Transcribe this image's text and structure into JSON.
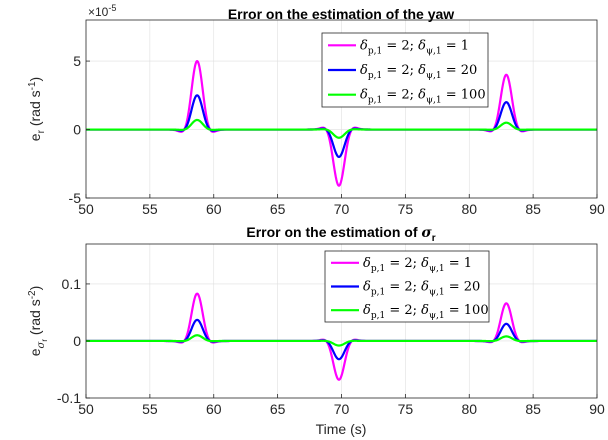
{
  "chart_data": [
    {
      "type": "line",
      "title": "Error on the estimation of the yaw",
      "ylabel_base": "e",
      "ylabel_sub": "r",
      "ylabel_units": "(rad s",
      "ylabel_units_sup": "-1",
      "ylabel_units_end": ")",
      "y_exponent_base": "×10",
      "y_exponent_power": "-5",
      "xlim": [
        50,
        90
      ],
      "ylim": [
        -5,
        8
      ],
      "xticks": [
        "50",
        "55",
        "60",
        "65",
        "70",
        "75",
        "80",
        "85",
        "90"
      ],
      "yticks": [
        "-5",
        "0",
        "5"
      ],
      "grid": true,
      "legend_position": "top-right",
      "colors": [
        "#ff00ff",
        "#0000ff",
        "#00ff00"
      ],
      "events": [
        {
          "t": 58.7,
          "amp": [
            5.0,
            2.5,
            0.7
          ],
          "sign": 1
        },
        {
          "t": 69.8,
          "amp": [
            4.1,
            2.0,
            0.6
          ],
          "sign": -1
        },
        {
          "t": 82.9,
          "amp": [
            4.0,
            2.0,
            0.5
          ],
          "sign": 1
        }
      ],
      "series": [
        {
          "legend": {
            "d1": "δ",
            "d1sub": "p,1",
            "v1": " = 2; ",
            "d2": "δ",
            "d2sub": "ψ,1",
            "v2": " = 1"
          }
        },
        {
          "legend": {
            "d1": "δ",
            "d1sub": "p,1",
            "v1": " = 2; ",
            "d2": "δ",
            "d2sub": "ψ,1",
            "v2": " = 20"
          }
        },
        {
          "legend": {
            "d1": "δ",
            "d1sub": "p,1",
            "v1": " = 2; ",
            "d2": "δ",
            "d2sub": "ψ,1",
            "v2": " = 100"
          }
        }
      ]
    },
    {
      "type": "line",
      "title_text": "Error on the estimation of ",
      "title_sym": "σ",
      "title_sub": "r",
      "ylabel_base": "e",
      "ylabel_sub": "σ",
      "ylabel_subsub": "r",
      "ylabel_units": "(rad s",
      "ylabel_units_sup": "-2",
      "ylabel_units_end": ")",
      "xlabel": "Time (s)",
      "xlim": [
        50,
        90
      ],
      "ylim": [
        -0.1,
        0.17
      ],
      "xticks": [
        "50",
        "55",
        "60",
        "65",
        "70",
        "75",
        "80",
        "85",
        "90"
      ],
      "yticks": [
        "-0.1",
        "0",
        "0.1"
      ],
      "grid": true,
      "legend_position": "top-right",
      "colors": [
        "#ff00ff",
        "#0000ff",
        "#00ff00"
      ],
      "events": [
        {
          "t": 58.7,
          "amp": [
            0.083,
            0.037,
            0.01
          ],
          "sign": 1
        },
        {
          "t": 69.8,
          "amp": [
            0.068,
            0.032,
            0.008
          ],
          "sign": -1
        },
        {
          "t": 82.9,
          "amp": [
            0.066,
            0.03,
            0.008
          ],
          "sign": 1
        }
      ],
      "series": [
        {
          "legend": {
            "d1": "δ",
            "d1sub": "p,1",
            "v1": " = 2; ",
            "d2": "δ",
            "d2sub": "ψ,1",
            "v2": " = 1"
          }
        },
        {
          "legend": {
            "d1": "δ",
            "d1sub": "p,1",
            "v1": " = 2; ",
            "d2": "δ",
            "d2sub": "ψ,1",
            "v2": " = 20"
          }
        },
        {
          "legend": {
            "d1": "δ",
            "d1sub": "p,1",
            "v1": " = 2; ",
            "d2": "δ",
            "d2sub": "ψ,1",
            "v2": " = 100"
          }
        }
      ]
    }
  ]
}
